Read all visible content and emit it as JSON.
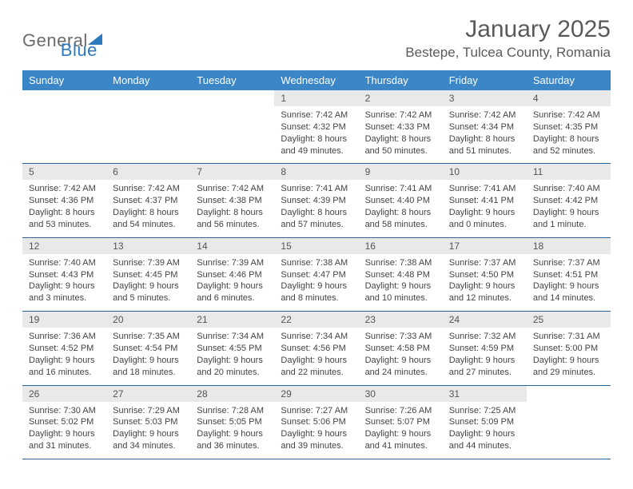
{
  "logo": {
    "word1": "General",
    "word2": "Blue"
  },
  "title": "January 2025",
  "location": "Bestepe, Tulcea County, Romania",
  "colors": {
    "header_bg": "#3a86c6",
    "header_fg": "#ffffff",
    "daynum_bg": "#e9e9e9",
    "row_border": "#28669e",
    "text": "#444444",
    "title_text": "#5a5a5a",
    "logo_gray": "#6b6b6b",
    "logo_blue": "#2d79bd",
    "background": "#ffffff"
  },
  "typography": {
    "title_fontsize": 30,
    "location_fontsize": 17,
    "weekday_fontsize": 13,
    "daynum_fontsize": 12,
    "body_fontsize": 11
  },
  "weekdays": [
    "Sunday",
    "Monday",
    "Tuesday",
    "Wednesday",
    "Thursday",
    "Friday",
    "Saturday"
  ],
  "weeks": [
    [
      {
        "blank": true
      },
      {
        "blank": true
      },
      {
        "blank": true
      },
      {
        "n": "1",
        "sr": "Sunrise: 7:42 AM",
        "ss": "Sunset: 4:32 PM",
        "d1": "Daylight: 8 hours",
        "d2": "and 49 minutes."
      },
      {
        "n": "2",
        "sr": "Sunrise: 7:42 AM",
        "ss": "Sunset: 4:33 PM",
        "d1": "Daylight: 8 hours",
        "d2": "and 50 minutes."
      },
      {
        "n": "3",
        "sr": "Sunrise: 7:42 AM",
        "ss": "Sunset: 4:34 PM",
        "d1": "Daylight: 8 hours",
        "d2": "and 51 minutes."
      },
      {
        "n": "4",
        "sr": "Sunrise: 7:42 AM",
        "ss": "Sunset: 4:35 PM",
        "d1": "Daylight: 8 hours",
        "d2": "and 52 minutes."
      }
    ],
    [
      {
        "n": "5",
        "sr": "Sunrise: 7:42 AM",
        "ss": "Sunset: 4:36 PM",
        "d1": "Daylight: 8 hours",
        "d2": "and 53 minutes."
      },
      {
        "n": "6",
        "sr": "Sunrise: 7:42 AM",
        "ss": "Sunset: 4:37 PM",
        "d1": "Daylight: 8 hours",
        "d2": "and 54 minutes."
      },
      {
        "n": "7",
        "sr": "Sunrise: 7:42 AM",
        "ss": "Sunset: 4:38 PM",
        "d1": "Daylight: 8 hours",
        "d2": "and 56 minutes."
      },
      {
        "n": "8",
        "sr": "Sunrise: 7:41 AM",
        "ss": "Sunset: 4:39 PM",
        "d1": "Daylight: 8 hours",
        "d2": "and 57 minutes."
      },
      {
        "n": "9",
        "sr": "Sunrise: 7:41 AM",
        "ss": "Sunset: 4:40 PM",
        "d1": "Daylight: 8 hours",
        "d2": "and 58 minutes."
      },
      {
        "n": "10",
        "sr": "Sunrise: 7:41 AM",
        "ss": "Sunset: 4:41 PM",
        "d1": "Daylight: 9 hours",
        "d2": "and 0 minutes."
      },
      {
        "n": "11",
        "sr": "Sunrise: 7:40 AM",
        "ss": "Sunset: 4:42 PM",
        "d1": "Daylight: 9 hours",
        "d2": "and 1 minute."
      }
    ],
    [
      {
        "n": "12",
        "sr": "Sunrise: 7:40 AM",
        "ss": "Sunset: 4:43 PM",
        "d1": "Daylight: 9 hours",
        "d2": "and 3 minutes."
      },
      {
        "n": "13",
        "sr": "Sunrise: 7:39 AM",
        "ss": "Sunset: 4:45 PM",
        "d1": "Daylight: 9 hours",
        "d2": "and 5 minutes."
      },
      {
        "n": "14",
        "sr": "Sunrise: 7:39 AM",
        "ss": "Sunset: 4:46 PM",
        "d1": "Daylight: 9 hours",
        "d2": "and 6 minutes."
      },
      {
        "n": "15",
        "sr": "Sunrise: 7:38 AM",
        "ss": "Sunset: 4:47 PM",
        "d1": "Daylight: 9 hours",
        "d2": "and 8 minutes."
      },
      {
        "n": "16",
        "sr": "Sunrise: 7:38 AM",
        "ss": "Sunset: 4:48 PM",
        "d1": "Daylight: 9 hours",
        "d2": "and 10 minutes."
      },
      {
        "n": "17",
        "sr": "Sunrise: 7:37 AM",
        "ss": "Sunset: 4:50 PM",
        "d1": "Daylight: 9 hours",
        "d2": "and 12 minutes."
      },
      {
        "n": "18",
        "sr": "Sunrise: 7:37 AM",
        "ss": "Sunset: 4:51 PM",
        "d1": "Daylight: 9 hours",
        "d2": "and 14 minutes."
      }
    ],
    [
      {
        "n": "19",
        "sr": "Sunrise: 7:36 AM",
        "ss": "Sunset: 4:52 PM",
        "d1": "Daylight: 9 hours",
        "d2": "and 16 minutes."
      },
      {
        "n": "20",
        "sr": "Sunrise: 7:35 AM",
        "ss": "Sunset: 4:54 PM",
        "d1": "Daylight: 9 hours",
        "d2": "and 18 minutes."
      },
      {
        "n": "21",
        "sr": "Sunrise: 7:34 AM",
        "ss": "Sunset: 4:55 PM",
        "d1": "Daylight: 9 hours",
        "d2": "and 20 minutes."
      },
      {
        "n": "22",
        "sr": "Sunrise: 7:34 AM",
        "ss": "Sunset: 4:56 PM",
        "d1": "Daylight: 9 hours",
        "d2": "and 22 minutes."
      },
      {
        "n": "23",
        "sr": "Sunrise: 7:33 AM",
        "ss": "Sunset: 4:58 PM",
        "d1": "Daylight: 9 hours",
        "d2": "and 24 minutes."
      },
      {
        "n": "24",
        "sr": "Sunrise: 7:32 AM",
        "ss": "Sunset: 4:59 PM",
        "d1": "Daylight: 9 hours",
        "d2": "and 27 minutes."
      },
      {
        "n": "25",
        "sr": "Sunrise: 7:31 AM",
        "ss": "Sunset: 5:00 PM",
        "d1": "Daylight: 9 hours",
        "d2": "and 29 minutes."
      }
    ],
    [
      {
        "n": "26",
        "sr": "Sunrise: 7:30 AM",
        "ss": "Sunset: 5:02 PM",
        "d1": "Daylight: 9 hours",
        "d2": "and 31 minutes."
      },
      {
        "n": "27",
        "sr": "Sunrise: 7:29 AM",
        "ss": "Sunset: 5:03 PM",
        "d1": "Daylight: 9 hours",
        "d2": "and 34 minutes."
      },
      {
        "n": "28",
        "sr": "Sunrise: 7:28 AM",
        "ss": "Sunset: 5:05 PM",
        "d1": "Daylight: 9 hours",
        "d2": "and 36 minutes."
      },
      {
        "n": "29",
        "sr": "Sunrise: 7:27 AM",
        "ss": "Sunset: 5:06 PM",
        "d1": "Daylight: 9 hours",
        "d2": "and 39 minutes."
      },
      {
        "n": "30",
        "sr": "Sunrise: 7:26 AM",
        "ss": "Sunset: 5:07 PM",
        "d1": "Daylight: 9 hours",
        "d2": "and 41 minutes."
      },
      {
        "n": "31",
        "sr": "Sunrise: 7:25 AM",
        "ss": "Sunset: 5:09 PM",
        "d1": "Daylight: 9 hours",
        "d2": "and 44 minutes."
      },
      {
        "blank": true
      }
    ]
  ]
}
